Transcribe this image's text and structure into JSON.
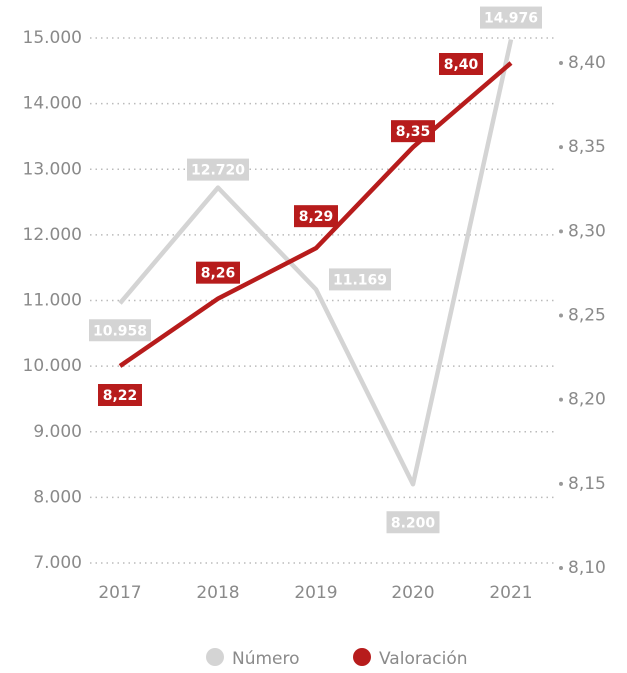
{
  "chart_data": {
    "type": "line",
    "categories": [
      "2017",
      "2018",
      "2019",
      "2020",
      "2021"
    ],
    "series": [
      {
        "name": "Número",
        "color": "#d4d4d4",
        "values": [
          10958,
          12720,
          11169,
          8200,
          14976
        ],
        "value_labels": [
          "10.958",
          "12.720",
          "11.169",
          "8.200",
          "14.976"
        ]
      },
      {
        "name": "Valoración",
        "color": "#b71c1c",
        "axis": "y2",
        "values": [
          8.22,
          8.26,
          8.29,
          8.35,
          8.4
        ],
        "value_labels": [
          "8,22",
          "8,26",
          "8,29",
          "8,35",
          "8,40"
        ]
      }
    ],
    "ylim": [
      7000,
      15000
    ],
    "yticks": [
      {
        "value": 7000,
        "label": "7.000"
      },
      {
        "value": 8000,
        "label": "8.000"
      },
      {
        "value": 9000,
        "label": "9.000"
      },
      {
        "value": 10000,
        "label": "10.000"
      },
      {
        "value": 11000,
        "label": "11.000"
      },
      {
        "value": 12000,
        "label": "12.000"
      },
      {
        "value": 13000,
        "label": "13.000"
      },
      {
        "value": 14000,
        "label": "14.000"
      },
      {
        "value": 15000,
        "label": "15.000"
      }
    ],
    "y2lim": [
      8.1,
      8.4
    ],
    "y2ticks": [
      {
        "value": 8.1,
        "label": "8,10"
      },
      {
        "value": 8.15,
        "label": "8,15"
      },
      {
        "value": 8.2,
        "label": "8,20"
      },
      {
        "value": 8.25,
        "label": "8,25"
      },
      {
        "value": 8.3,
        "label": "8,30"
      },
      {
        "value": 8.35,
        "label": "8,35"
      },
      {
        "value": 8.4,
        "label": "8,40"
      }
    ],
    "grid": true,
    "legend": "bottom"
  }
}
